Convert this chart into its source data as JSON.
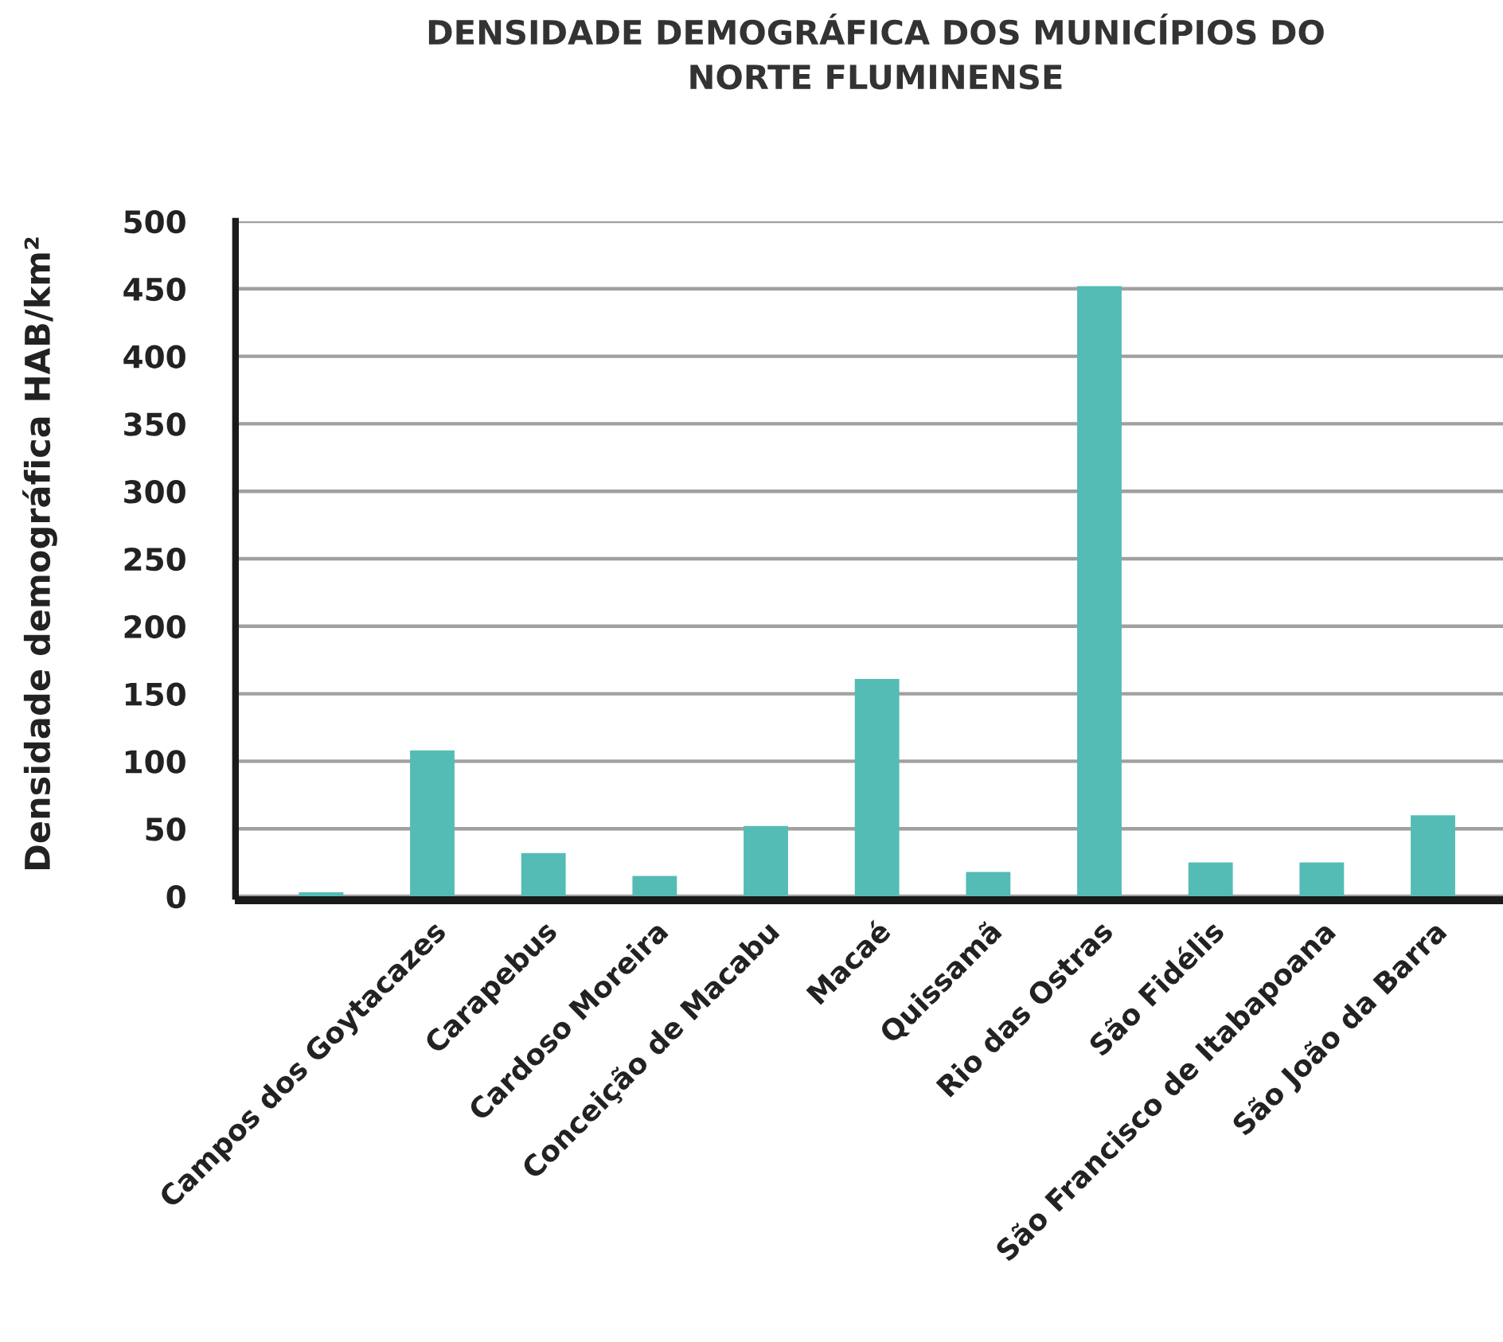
{
  "chart_data": {
    "type": "bar",
    "title": "DENSIDADE DEMOGRÁFICA DOS MUNICÍPIOS DO\nNORTE FLUMINENSE",
    "ylabel": "Densidade demográfica HAB/km²",
    "categories": [
      null,
      "Campos dos Goytacazes",
      "Carapebus",
      "Cardoso Moreira",
      "Conceição de Macabu",
      "Macaé",
      "Quissamã",
      "Rio das Ostras",
      "São Fidélis",
      "São Francisco de Itabapoana",
      "São João da Barra"
    ],
    "values": [
      3,
      108,
      32,
      15,
      52,
      161,
      18,
      452,
      25,
      25,
      60
    ],
    "color": "#54bcb4",
    "ylim": [
      0,
      500
    ],
    "yticks": [
      0,
      50,
      100,
      150,
      200,
      250,
      300,
      350,
      400,
      450,
      500
    ],
    "grid": "y",
    "legend": false
  }
}
